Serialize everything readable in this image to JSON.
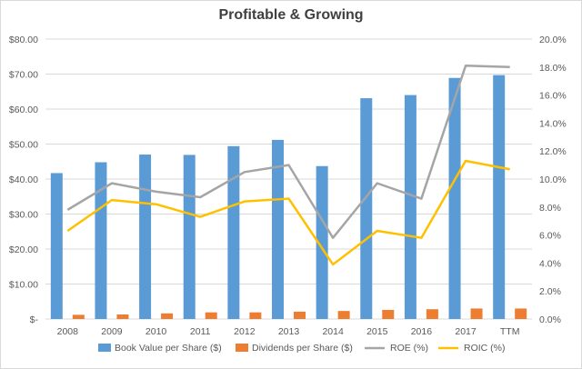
{
  "chart_data": {
    "type": "bar",
    "title": "Profitable & Growing",
    "categories": [
      "2008",
      "2009",
      "2010",
      "2011",
      "2012",
      "2013",
      "2014",
      "2015",
      "2016",
      "2017",
      "TTM"
    ],
    "left_axis": {
      "ylim": [
        0,
        80
      ],
      "ticks": [
        0,
        10,
        20,
        30,
        40,
        50,
        60,
        70,
        80
      ],
      "tick_labels": [
        "$-",
        "$10.00",
        "$20.00",
        "$30.00",
        "$40.00",
        "$50.00",
        "$60.00",
        "$70.00",
        "$80.00"
      ]
    },
    "right_axis": {
      "ylim": [
        0,
        20
      ],
      "ticks": [
        0,
        2,
        4,
        6,
        8,
        10,
        12,
        14,
        16,
        18,
        20
      ],
      "tick_labels": [
        "0.0%",
        "2.0%",
        "4.0%",
        "6.0%",
        "8.0%",
        "10.0%",
        "12.0%",
        "14.0%",
        "16.0%",
        "18.0%",
        "20.0%"
      ]
    },
    "grid": true,
    "legend_position": "bottom",
    "series": [
      {
        "name": "Book Value per Share ($)",
        "type": "bar",
        "axis": "left",
        "color": "#5b9bd5",
        "values": [
          41.7,
          44.8,
          47.0,
          46.9,
          49.4,
          51.2,
          43.7,
          63.1,
          64.0,
          68.9,
          69.7
        ]
      },
      {
        "name": "Dividends per Share ($)",
        "type": "bar",
        "axis": "left",
        "color": "#ed7d31",
        "values": [
          1.2,
          1.3,
          1.6,
          1.9,
          1.9,
          2.1,
          2.3,
          2.6,
          2.8,
          3.0,
          3.0
        ]
      },
      {
        "name": "ROE (%)",
        "type": "line",
        "axis": "right",
        "color": "#a5a5a5",
        "values": [
          7.8,
          9.7,
          9.1,
          8.7,
          10.5,
          11.0,
          5.8,
          9.7,
          8.6,
          18.1,
          18.0
        ]
      },
      {
        "name": "ROIC (%)",
        "type": "line",
        "axis": "right",
        "color": "#ffc000",
        "values": [
          6.3,
          8.5,
          8.2,
          7.3,
          8.4,
          8.6,
          3.9,
          6.3,
          5.8,
          11.3,
          10.7
        ]
      }
    ]
  }
}
